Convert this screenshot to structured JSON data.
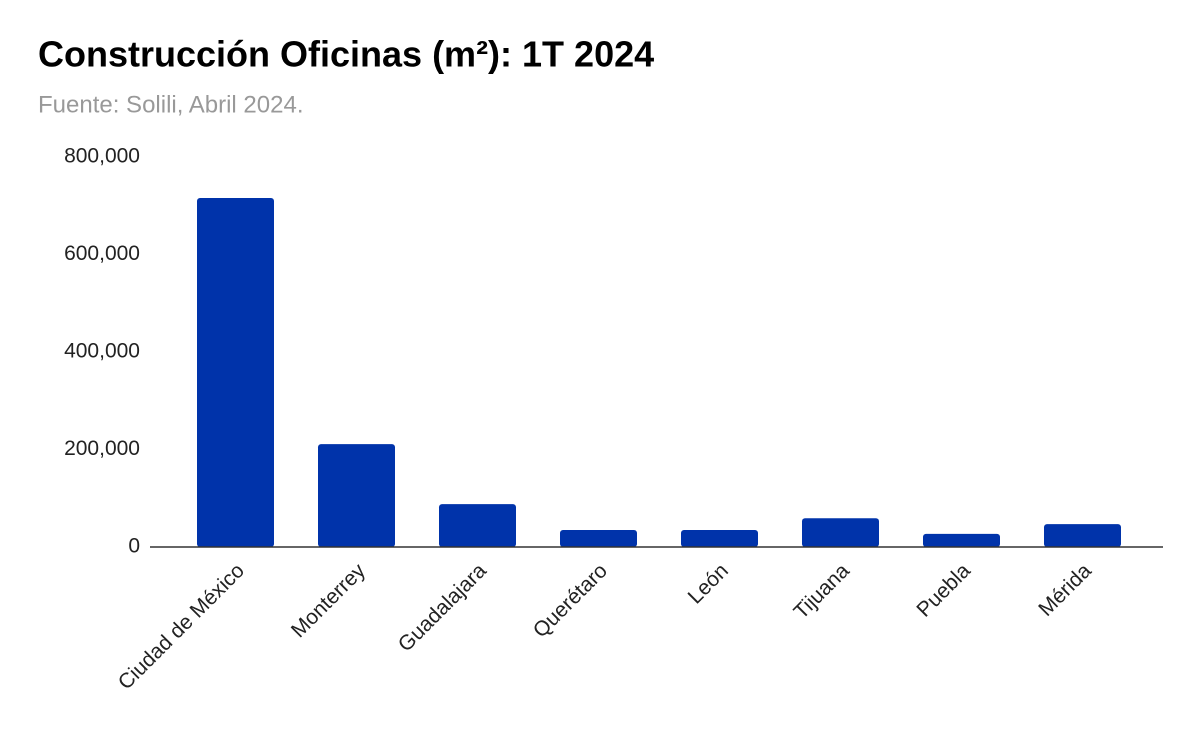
{
  "chart_data": {
    "type": "bar",
    "title": "Construcción Oficinas (m²): 1T 2024",
    "subtitle": "Fuente: Solili, Abril 2024.",
    "categories": [
      "Ciudad de México",
      "Monterrey",
      "Guadalajara",
      "Querétaro",
      "León",
      "Tijuana",
      "Puebla",
      "Mérida"
    ],
    "values": [
      716000,
      211000,
      88000,
      35000,
      35000,
      59000,
      27000,
      47000
    ],
    "color": "#0033aa",
    "ylim": [
      0,
      800000
    ],
    "yticks": [
      0,
      {
        "value": 200000,
        "label": "200,000"
      },
      {
        "value": 400000,
        "label": "400,000"
      },
      {
        "value": 600000,
        "label": "600,000"
      },
      {
        "value": 800000,
        "label": "800,000"
      }
    ],
    "grid": false
  }
}
